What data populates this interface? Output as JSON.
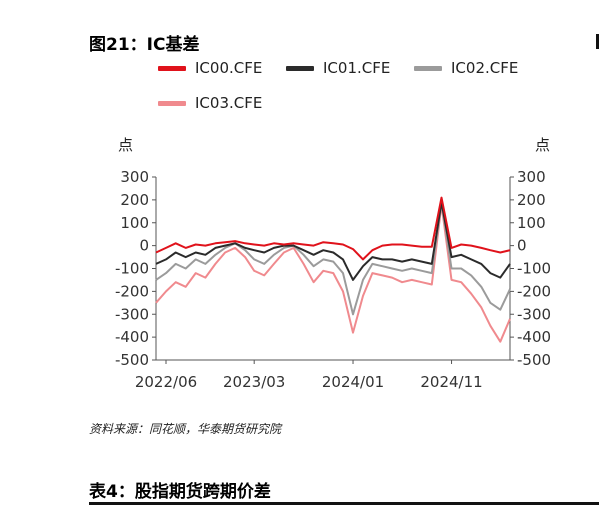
{
  "figure": {
    "title": "图21：IC基差",
    "source": "资料来源：同花顺，华泰期货研究院"
  },
  "table": {
    "title": "表4：股指期货跨期价差"
  },
  "chart_data": {
    "type": "line",
    "title": "图21：IC基差",
    "ylabel_left": "点",
    "ylabel_right": "点",
    "ylim": [
      -500,
      300
    ],
    "yticks": [
      300,
      200,
      100,
      0,
      -100,
      -200,
      -300,
      -400,
      -500
    ],
    "xticks": [
      "2022/06",
      "2023/03",
      "2024/01",
      "2024/11"
    ],
    "grid": false,
    "legend_position": "top",
    "series": [
      {
        "name": "IC00.CFE",
        "color": "#e0121b",
        "dates": [
          "2022/05",
          "2022/06",
          "2022/07",
          "2022/08",
          "2022/09",
          "2022/10",
          "2022/11",
          "2022/12",
          "2023/01",
          "2023/02",
          "2023/03",
          "2023/04",
          "2023/05",
          "2023/06",
          "2023/07",
          "2023/08",
          "2023/09",
          "2023/10",
          "2023/11",
          "2023/12",
          "2024/01",
          "2024/02",
          "2024/03",
          "2024/04",
          "2024/05",
          "2024/06",
          "2024/07",
          "2024/08",
          "2024/09",
          "2024/10",
          "2024/11",
          "2024/12",
          "2025/01",
          "2025/02",
          "2025/03",
          "2025/04",
          "2025/05"
        ],
        "values": [
          -30,
          -10,
          10,
          -10,
          5,
          0,
          10,
          15,
          20,
          10,
          5,
          0,
          10,
          5,
          10,
          5,
          0,
          15,
          10,
          5,
          -15,
          -60,
          -20,
          0,
          5,
          5,
          0,
          -5,
          -5,
          210,
          -10,
          5,
          0,
          -10,
          -20,
          -30,
          -20
        ]
      },
      {
        "name": "IC01.CFE",
        "color": "#2b2b2b",
        "dates": [
          "2022/05",
          "2022/06",
          "2022/07",
          "2022/08",
          "2022/09",
          "2022/10",
          "2022/11",
          "2022/12",
          "2023/01",
          "2023/02",
          "2023/03",
          "2023/04",
          "2023/05",
          "2023/06",
          "2023/07",
          "2023/08",
          "2023/09",
          "2023/10",
          "2023/11",
          "2023/12",
          "2024/01",
          "2024/02",
          "2024/03",
          "2024/04",
          "2024/05",
          "2024/06",
          "2024/07",
          "2024/08",
          "2024/09",
          "2024/10",
          "2024/11",
          "2024/12",
          "2025/01",
          "2025/02",
          "2025/03",
          "2025/04",
          "2025/05"
        ],
        "values": [
          -80,
          -60,
          -30,
          -50,
          -30,
          -40,
          -10,
          0,
          10,
          -10,
          -20,
          -30,
          -10,
          0,
          0,
          -20,
          -40,
          -20,
          -30,
          -60,
          -150,
          -90,
          -50,
          -60,
          -60,
          -70,
          -60,
          -70,
          -80,
          190,
          -50,
          -40,
          -60,
          -80,
          -120,
          -140,
          -80
        ]
      },
      {
        "name": "IC02.CFE",
        "color": "#9b9b9b",
        "dates": [
          "2022/05",
          "2022/06",
          "2022/07",
          "2022/08",
          "2022/09",
          "2022/10",
          "2022/11",
          "2022/12",
          "2023/01",
          "2023/02",
          "2023/03",
          "2023/04",
          "2023/05",
          "2023/06",
          "2023/07",
          "2023/08",
          "2023/09",
          "2023/10",
          "2023/11",
          "2023/12",
          "2024/01",
          "2024/02",
          "2024/03",
          "2024/04",
          "2024/05",
          "2024/06",
          "2024/07",
          "2024/08",
          "2024/09",
          "2024/10",
          "2024/11",
          "2024/12",
          "2025/01",
          "2025/02",
          "2025/03",
          "2025/04",
          "2025/05"
        ],
        "values": [
          -150,
          -120,
          -80,
          -100,
          -60,
          -80,
          -40,
          -10,
          10,
          -20,
          -60,
          -80,
          -40,
          -10,
          0,
          -40,
          -90,
          -60,
          -70,
          -120,
          -300,
          -150,
          -80,
          -90,
          -100,
          -110,
          -100,
          -110,
          -120,
          190,
          -100,
          -100,
          -130,
          -180,
          -250,
          -280,
          -190
        ]
      },
      {
        "name": "IC03.CFE",
        "color": "#f08a8e",
        "dates": [
          "2022/05",
          "2022/06",
          "2022/07",
          "2022/08",
          "2022/09",
          "2022/10",
          "2022/11",
          "2022/12",
          "2023/01",
          "2023/02",
          "2023/03",
          "2023/04",
          "2023/05",
          "2023/06",
          "2023/07",
          "2023/08",
          "2023/09",
          "2023/10",
          "2023/11",
          "2023/12",
          "2024/01",
          "2024/02",
          "2024/03",
          "2024/04",
          "2024/05",
          "2024/06",
          "2024/07",
          "2024/08",
          "2024/09",
          "2024/10",
          "2024/11",
          "2024/12",
          "2025/01",
          "2025/02",
          "2025/03",
          "2025/04",
          "2025/05"
        ],
        "values": [
          -250,
          -200,
          -160,
          -180,
          -120,
          -140,
          -80,
          -30,
          -10,
          -50,
          -110,
          -130,
          -80,
          -30,
          -10,
          -80,
          -160,
          -110,
          -120,
          -200,
          -380,
          -220,
          -120,
          -130,
          -140,
          -160,
          -150,
          -160,
          -170,
          180,
          -150,
          -160,
          -210,
          -270,
          -350,
          -420,
          -320
        ]
      }
    ]
  }
}
